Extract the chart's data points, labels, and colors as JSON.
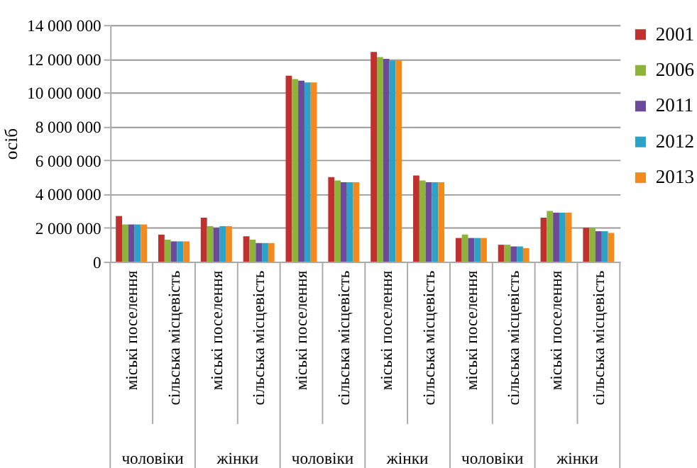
{
  "chart_data": {
    "type": "bar",
    "ylabel": "осіб",
    "categories": [
      "міські поселення",
      "сільська місцевість",
      "міські поселення",
      "сільська місцевість",
      "міські поселення",
      "сільська місцевість",
      "міські поселення",
      "сільська місцевість",
      "міські поселення",
      "сільська місцевість",
      "міські поселення",
      "сільська місцевість"
    ],
    "series": [
      {
        "name": "2001",
        "color": "#c0302f",
        "values": [
          2700000,
          1600000,
          2600000,
          1500000,
          11000000,
          5000000,
          12400000,
          5100000,
          1400000,
          1000000,
          2600000,
          2000000
        ]
      },
      {
        "name": "2006",
        "color": "#8db33a",
        "values": [
          2200000,
          1300000,
          2100000,
          1300000,
          10800000,
          4800000,
          12100000,
          4800000,
          1600000,
          1000000,
          3000000,
          2000000
        ]
      },
      {
        "name": "2011",
        "color": "#6b4a9a",
        "values": [
          2200000,
          1200000,
          2000000,
          1100000,
          10700000,
          4700000,
          12000000,
          4700000,
          1400000,
          900000,
          2900000,
          1800000
        ]
      },
      {
        "name": "2012",
        "color": "#2aa3c6",
        "values": [
          2200000,
          1200000,
          2100000,
          1100000,
          10600000,
          4700000,
          11900000,
          4700000,
          1400000,
          900000,
          2900000,
          1800000
        ]
      },
      {
        "name": "2013",
        "color": "#f28a1e",
        "values": [
          2200000,
          1200000,
          2100000,
          1100000,
          10600000,
          4700000,
          11900000,
          4700000,
          1400000,
          800000,
          2900000,
          1700000
        ]
      }
    ],
    "ylim": [
      0,
      14000000
    ],
    "yticks": [
      {
        "value": 0,
        "label": "0"
      },
      {
        "value": 2000000,
        "label": "2 000 000"
      },
      {
        "value": 4000000,
        "label": "4 000 000"
      },
      {
        "value": 6000000,
        "label": "6 000 000"
      },
      {
        "value": 8000000,
        "label": "8 000 000"
      },
      {
        "value": 10000000,
        "label": "10 000 000"
      },
      {
        "value": 12000000,
        "label": "12 000 000"
      },
      {
        "value": 14000000,
        "label": "14 000 000"
      }
    ],
    "grid": "y",
    "legend": "right",
    "annotations": [
      "чоловіки",
      "жінки",
      "чоловіки",
      "жінки",
      "чоловіки",
      "жінки"
    ]
  }
}
